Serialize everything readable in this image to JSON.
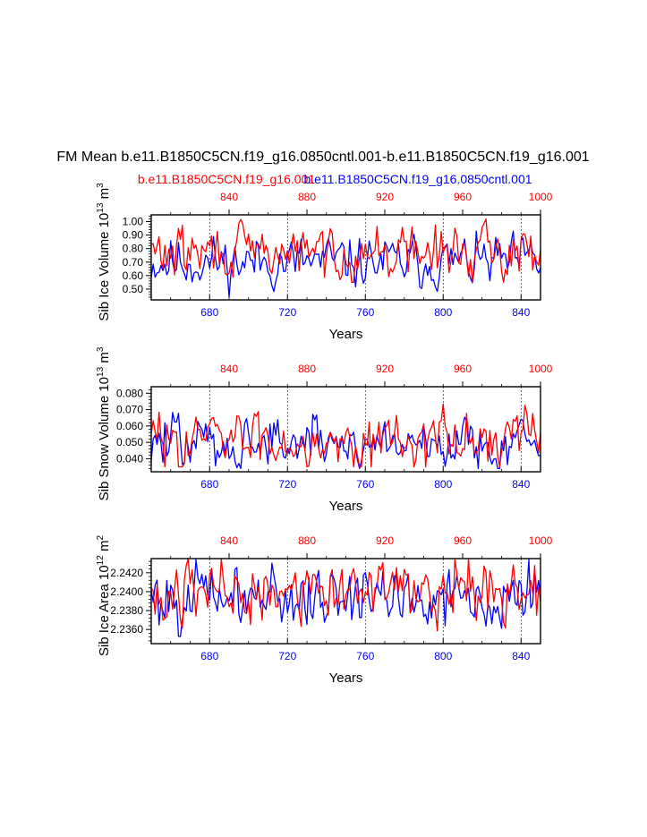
{
  "title": "FM Mean b.e11.B1850C5CN.f19_g16.0850cntl.001-b.e11.B1850C5CN.f19_g16.001",
  "legend": {
    "red_case": "b.e11.B1850C5CN.f19_g16.001",
    "blue_case": "b.e11.B1850C5CN.f19_g16.0850cntl.001"
  },
  "colors": {
    "case_red": "#ff0000",
    "case_blue": "#0000ff",
    "axis": "#000000"
  },
  "chart_data": [
    {
      "type": "line",
      "ylabel": "Sib Ice Volume 10",
      "ylabel_sup1": "13",
      "ylabel_mid": " m",
      "ylabel_sup2": "3",
      "xlabel": "Years",
      "xlim_bottom": [
        650,
        850
      ],
      "xlim_top": [
        800,
        1000
      ],
      "ylim": [
        0.42,
        1.05
      ],
      "yticks": [
        0.5,
        0.6,
        0.7,
        0.8,
        0.9,
        1.0
      ],
      "yticklabels": [
        "0.50",
        "0.60",
        "0.70",
        "0.80",
        "0.90",
        "1.00"
      ],
      "xticks_bottom": [
        680,
        720,
        760,
        800,
        840
      ],
      "xticklabels_bottom": [
        "680",
        "720",
        "760",
        "800",
        "840"
      ],
      "xticks_top": [
        840,
        880,
        920,
        960,
        1000
      ],
      "xticklabels_top": [
        "840",
        "880",
        "920",
        "960",
        "1000"
      ],
      "series": [
        {
          "name": "b.e11.B1850C5CN.f19_g16.0850cntl.001",
          "axis": "bottom",
          "x_start": 650,
          "seed": 11,
          "mean": 0.7,
          "amp": 0.09,
          "min": 0.44,
          "max": 0.93
        },
        {
          "name": "b.e11.B1850C5CN.f19_g16.001",
          "axis": "top",
          "x_start": 800,
          "seed": 29,
          "mean": 0.77,
          "amp": 0.09,
          "min": 0.55,
          "max": 1.04
        }
      ]
    },
    {
      "type": "line",
      "ylabel": "Sib Snow Volume 10",
      "ylabel_sup1": "13",
      "ylabel_mid": " m",
      "ylabel_sup2": "3",
      "xlabel": "Years",
      "xlim_bottom": [
        650,
        850
      ],
      "xlim_top": [
        800,
        1000
      ],
      "ylim": [
        0.032,
        0.084
      ],
      "yticks": [
        0.04,
        0.05,
        0.06,
        0.07,
        0.08
      ],
      "yticklabels": [
        "0.040",
        "0.050",
        "0.060",
        "0.070",
        "0.080"
      ],
      "xticks_bottom": [
        680,
        720,
        760,
        800,
        840
      ],
      "xticklabels_bottom": [
        "680",
        "720",
        "760",
        "800",
        "840"
      ],
      "xticks_top": [
        840,
        880,
        920,
        960,
        1000
      ],
      "xticklabels_top": [
        "840",
        "880",
        "920",
        "960",
        "1000"
      ],
      "series": [
        {
          "name": "b.e11.B1850C5CN.f19_g16.0850cntl.001",
          "axis": "bottom",
          "x_start": 650,
          "seed": 47,
          "mean": 0.05,
          "amp": 0.008,
          "min": 0.034,
          "max": 0.075
        },
        {
          "name": "b.e11.B1850C5CN.f19_g16.001",
          "axis": "top",
          "x_start": 800,
          "seed": 83,
          "mean": 0.052,
          "amp": 0.008,
          "min": 0.035,
          "max": 0.084
        }
      ]
    },
    {
      "type": "line",
      "ylabel": "Sib Ice Area 10",
      "ylabel_sup1": "12",
      "ylabel_mid": " m",
      "ylabel_sup2": "2",
      "xlabel": "Years",
      "xlim_bottom": [
        650,
        850
      ],
      "xlim_top": [
        800,
        1000
      ],
      "ylim": [
        2.2345,
        2.2435
      ],
      "yticks": [
        2.236,
        2.238,
        2.24,
        2.242
      ],
      "yticklabels": [
        "2.2360",
        "2.2380",
        "2.2400",
        "2.2420"
      ],
      "xticks_bottom": [
        680,
        720,
        760,
        800,
        840
      ],
      "xticklabels_bottom": [
        "680",
        "720",
        "760",
        "800",
        "840"
      ],
      "xticks_top": [
        840,
        880,
        920,
        960,
        1000
      ],
      "xticklabels_top": [
        "840",
        "880",
        "920",
        "960",
        "1000"
      ],
      "series": [
        {
          "name": "b.e11.B1850C5CN.f19_g16.0850cntl.001",
          "axis": "bottom",
          "x_start": 650,
          "seed": 101,
          "mean": 2.2395,
          "amp": 0.0016,
          "min": 2.2347,
          "max": 2.2434
        },
        {
          "name": "b.e11.B1850C5CN.f19_g16.001",
          "axis": "top",
          "x_start": 800,
          "seed": 137,
          "mean": 2.24,
          "amp": 0.0016,
          "min": 2.235,
          "max": 2.2435
        }
      ]
    }
  ]
}
